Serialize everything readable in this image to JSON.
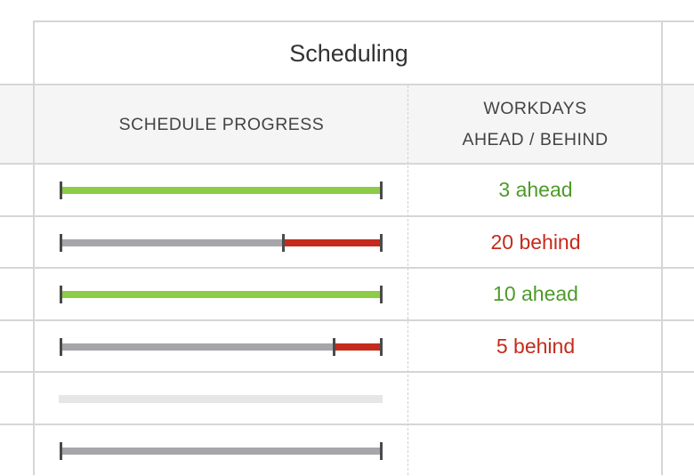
{
  "header": {
    "group_title": "Scheduling"
  },
  "columns": {
    "progress": "SCHEDULE PROGRESS",
    "workdays_line1": "WORKDAYS",
    "workdays_line2": "AHEAD / BEHIND"
  },
  "colors": {
    "ahead": "#8ccc46",
    "behind": "#c42b1c",
    "neutral": "#a6a6aa",
    "empty": "#e6e6e6",
    "ahead_text": "#4e9a2a",
    "behind_text": "#c42b1c"
  },
  "rows": [
    {
      "status": "ahead",
      "progress_fraction": 1.0,
      "marker_fraction": null,
      "delta": "3 ahead"
    },
    {
      "status": "behind",
      "progress_fraction": 1.0,
      "marker_fraction": 0.694,
      "delta": "20 behind"
    },
    {
      "status": "ahead",
      "progress_fraction": 1.0,
      "marker_fraction": null,
      "delta": "10 ahead"
    },
    {
      "status": "behind",
      "progress_fraction": 1.0,
      "marker_fraction": 0.853,
      "delta": "5 behind"
    },
    {
      "status": "empty",
      "progress_fraction": null,
      "marker_fraction": null,
      "delta": ""
    },
    {
      "status": "neutral",
      "progress_fraction": 1.0,
      "marker_fraction": null,
      "delta": ""
    }
  ]
}
